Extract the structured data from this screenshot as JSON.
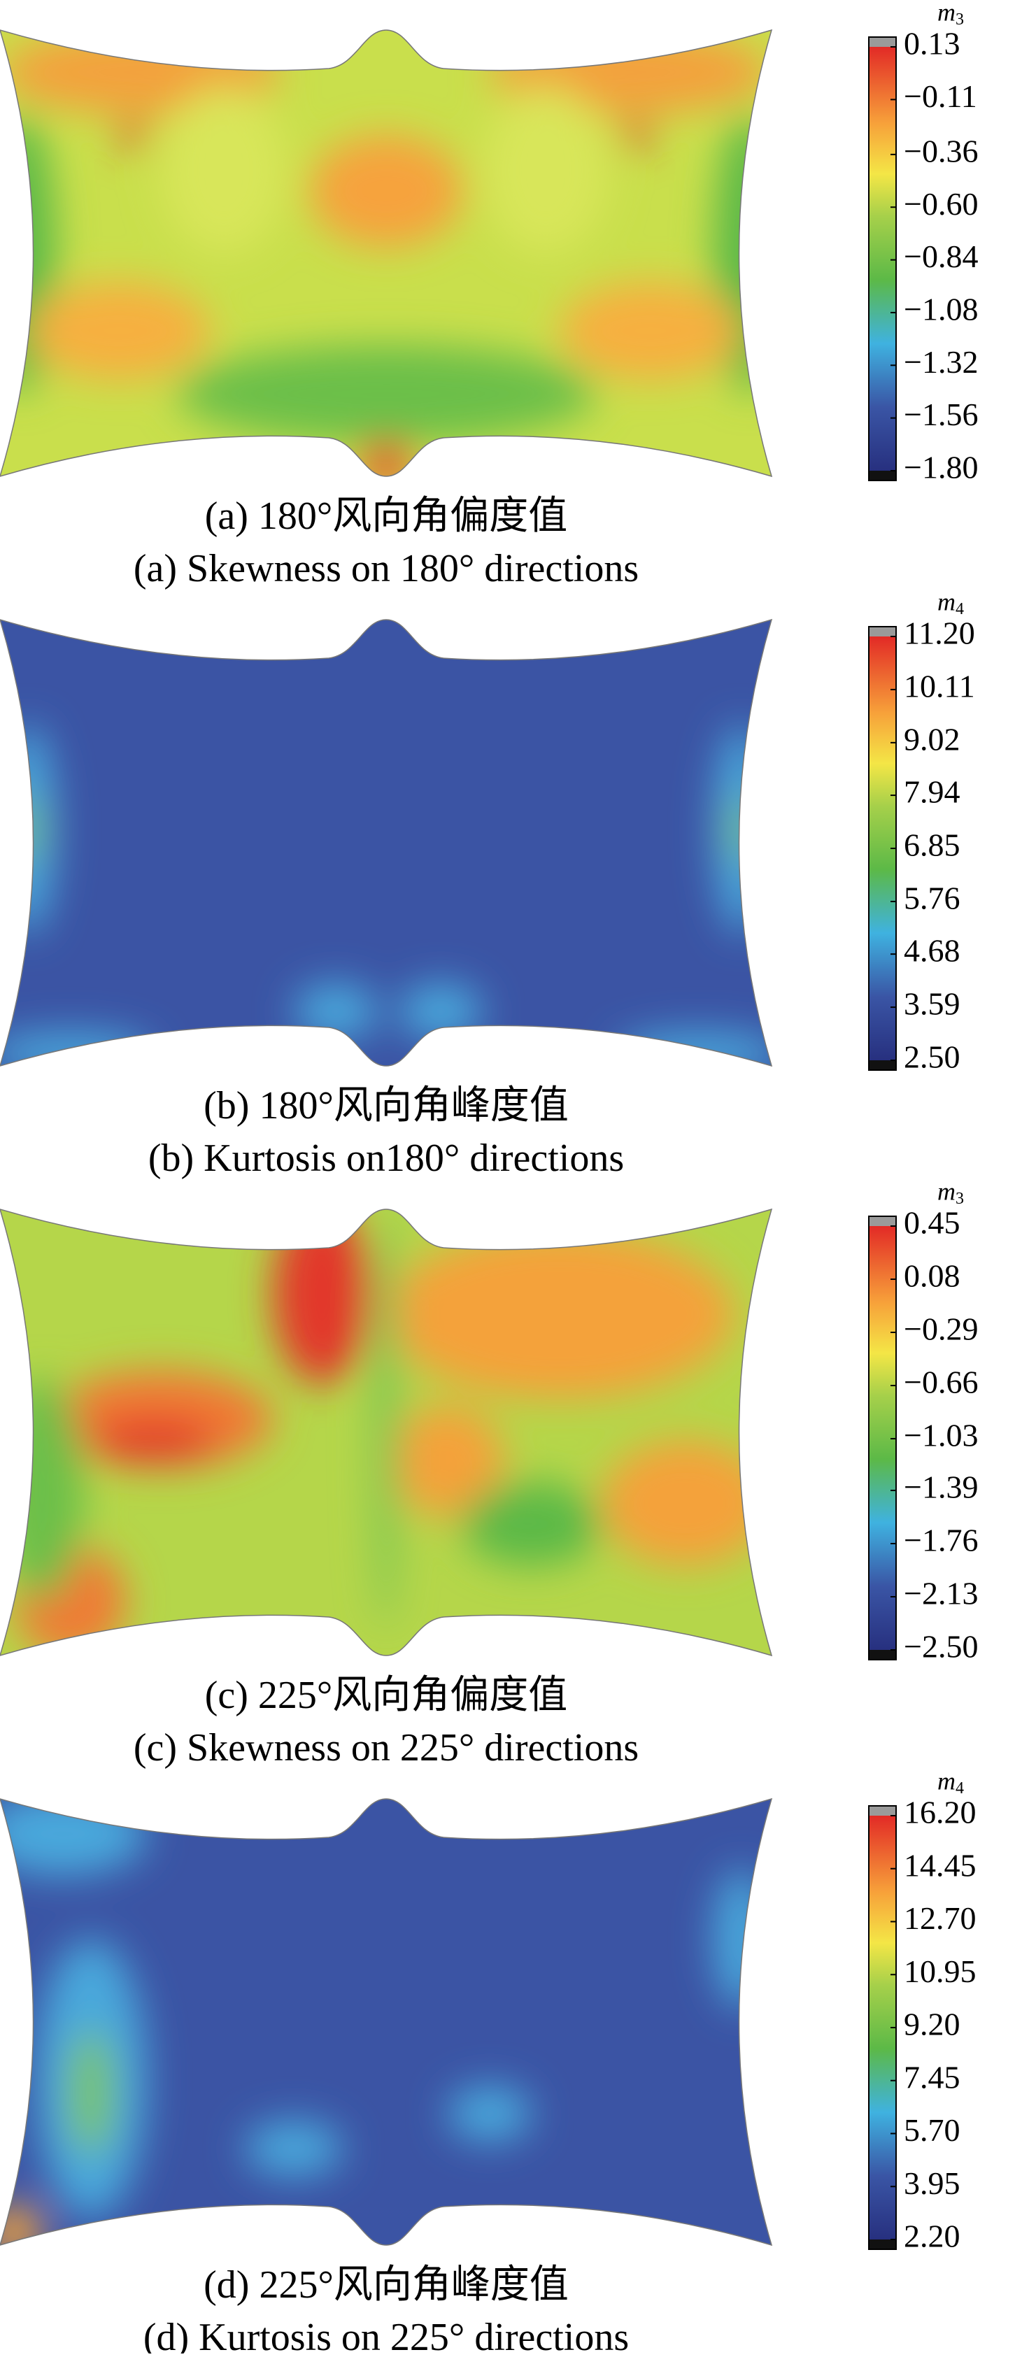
{
  "panels": [
    {
      "caption_cn": "(a) 180°风向角偏度值",
      "caption_en": "(a)  Skewness on 180° directions",
      "colorbar": {
        "symbol": "m",
        "subscript": "3",
        "ylim": [
          -1.8,
          0.13
        ],
        "ticks": [
          0.13,
          {
            "value": -0.11,
            "label": "−0.11"
          },
          {
            "value": -0.36,
            "label": "−0.36"
          },
          {
            "value": -0.6,
            "label": "−0.60"
          },
          {
            "value": -0.84,
            "label": "−0.84"
          },
          {
            "value": -1.08,
            "label": "−1.08"
          },
          {
            "value": -1.32,
            "label": "−1.32"
          },
          {
            "value": -1.56,
            "label": "−1.56"
          },
          {
            "value": -1.8,
            "label": "−1.80"
          }
        ]
      }
    },
    {
      "caption_cn": "(b) 180°风向角峰度值",
      "caption_en": "(b) Kurtosis on180° directions",
      "colorbar": {
        "symbol": "m",
        "subscript": "4",
        "ylim": [
          2.5,
          11.2
        ],
        "ticks": [
          {
            "value": 11.2,
            "label": "11.20"
          },
          10.11,
          9.02,
          7.94,
          6.85,
          5.76,
          4.68,
          3.59,
          {
            "value": 2.5,
            "label": "2.50"
          }
        ]
      }
    },
    {
      "caption_cn": "(c) 225°风向角偏度值",
      "caption_en": "(c) Skewness on 225° directions",
      "colorbar": {
        "symbol": "m",
        "subscript": "3",
        "ylim": [
          -2.5,
          0.45
        ],
        "ticks": [
          0.45,
          0.08,
          {
            "value": -0.29,
            "label": "−0.29"
          },
          {
            "value": -0.66,
            "label": "−0.66"
          },
          {
            "value": -1.03,
            "label": "−1.03"
          },
          {
            "value": -1.39,
            "label": "−1.39"
          },
          {
            "value": -1.76,
            "label": "−1.76"
          },
          {
            "value": -2.13,
            "label": "−2.13"
          },
          {
            "value": -2.5,
            "label": "−2.50"
          }
        ]
      }
    },
    {
      "caption_cn": "(d) 225°风向角峰度值",
      "caption_en": "(d) Kurtosis on 225° directions",
      "colorbar": {
        "symbol": "m",
        "subscript": "4",
        "ylim": [
          2.2,
          16.2
        ],
        "ticks": [
          {
            "value": 16.2,
            "label": "16.20"
          },
          14.45,
          {
            "value": 12.7,
            "label": "12.70"
          },
          10.95,
          {
            "value": 9.2,
            "label": "9.20"
          },
          7.45,
          {
            "value": 5.7,
            "label": "5.70"
          },
          3.95,
          {
            "value": 2.2,
            "label": "2.20"
          }
        ]
      }
    }
  ]
}
